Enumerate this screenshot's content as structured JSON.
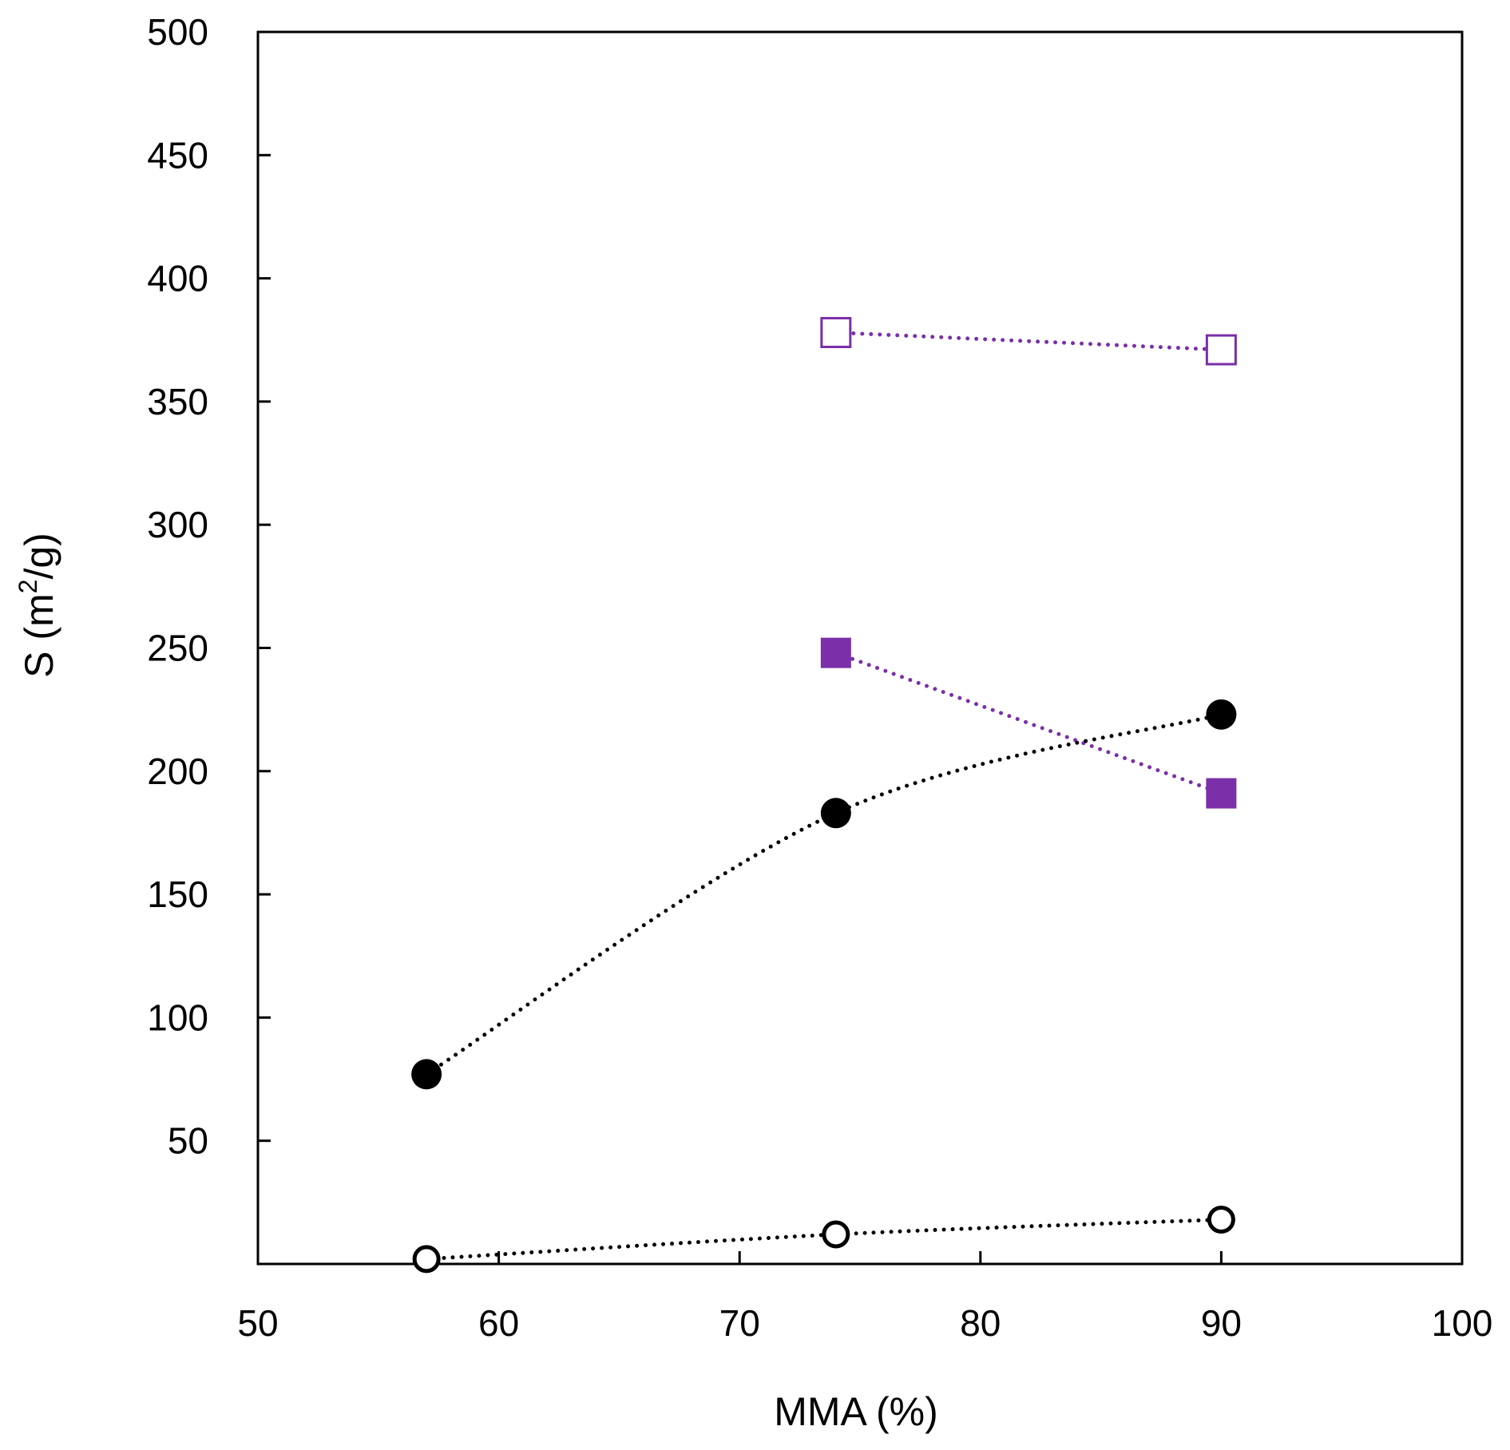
{
  "chart_data": {
    "type": "scatter",
    "title": "",
    "xlabel": "MMA (%)",
    "ylabel": {
      "prefix": "S (m",
      "sup": "2",
      "suffix": "/g)"
    },
    "xlim": [
      50,
      100
    ],
    "ylim": [
      0,
      500
    ],
    "xticks": [
      50,
      60,
      70,
      80,
      90,
      100
    ],
    "yticks": [
      50,
      100,
      150,
      200,
      250,
      300,
      350,
      400,
      450,
      500
    ],
    "grid": false,
    "legend": "none",
    "series": [
      {
        "marker": "square",
        "filled": false,
        "color": "#7B2FA8",
        "line": "dotted",
        "smooth": false,
        "points": [
          {
            "x": 74,
            "y": 378
          },
          {
            "x": 90,
            "y": 371
          }
        ]
      },
      {
        "marker": "square",
        "filled": true,
        "color": "#7B2FA8",
        "line": "dotted",
        "smooth": false,
        "points": [
          {
            "x": 74,
            "y": 248
          },
          {
            "x": 90,
            "y": 191
          }
        ]
      },
      {
        "marker": "circle",
        "filled": true,
        "color": "#000000",
        "line": "dotted",
        "smooth": true,
        "points": [
          {
            "x": 57,
            "y": 77
          },
          {
            "x": 74,
            "y": 183
          },
          {
            "x": 90,
            "y": 223
          }
        ]
      },
      {
        "marker": "circle",
        "filled": false,
        "color": "#000000",
        "line": "dotted",
        "smooth": true,
        "points": [
          {
            "x": 57,
            "y": 2
          },
          {
            "x": 74,
            "y": 12
          },
          {
            "x": 90,
            "y": 18
          }
        ]
      }
    ]
  }
}
